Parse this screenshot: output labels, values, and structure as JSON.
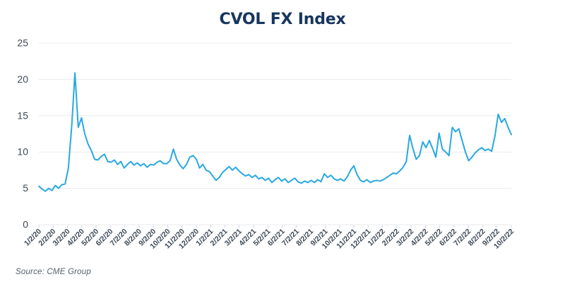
{
  "header": {
    "title": "CVOL FX Index"
  },
  "footer": {
    "source": "Source: CME Group"
  },
  "style": {
    "background": "#ffffff",
    "title_color": "#17365f",
    "line_color": "#29a8e1",
    "axis_label_color": "#3e4956",
    "grid_color": "#e8eaed",
    "tick_color": "#c9ced6",
    "source_color": "#555f6b"
  },
  "chart_data": {
    "type": "line",
    "title": "CVOL FX Index",
    "xlabel": "",
    "ylabel": "",
    "ylim": [
      0,
      25
    ],
    "y_ticks": [
      0,
      5,
      10,
      15,
      20,
      25
    ],
    "grid": "horizontal",
    "legend": "none",
    "source": "Source: CME Group",
    "x_tick_labels": [
      "1/2/20",
      "2/2/20",
      "3/2/20",
      "4/2/20",
      "5/2/20",
      "6/2/20",
      "7/2/20",
      "8/2/20",
      "9/2/20",
      "10/2/20",
      "11/2/20",
      "12/2/20",
      "1/2/21",
      "2/2/21",
      "3/2/21",
      "4/2/21",
      "5/2/21",
      "6/2/21",
      "7/2/21",
      "8/2/21",
      "9/2/21",
      "10/2/21",
      "11/2/21",
      "12/2/21",
      "1/2/22",
      "2/2/22",
      "3/2/22",
      "4/2/22",
      "5/2/22",
      "6/2/22",
      "7/2/22",
      "8/2/22",
      "9/2/22",
      "10/2/22"
    ],
    "series": [
      {
        "name": "CVOL FX Index",
        "color": "#29a8e1",
        "sampling": "weekly from 1/2/20 to 10/2/22",
        "values": [
          5.3,
          4.9,
          4.6,
          5.0,
          4.7,
          5.4,
          5.0,
          5.5,
          5.6,
          7.8,
          13.5,
          20.9,
          13.4,
          14.7,
          12.5,
          11.1,
          10.2,
          9.0,
          8.9,
          9.4,
          9.7,
          8.7,
          8.6,
          8.9,
          8.3,
          8.7,
          7.8,
          8.3,
          8.7,
          8.2,
          8.5,
          8.1,
          8.4,
          7.9,
          8.3,
          8.2,
          8.6,
          8.8,
          8.4,
          8.4,
          8.8,
          10.4,
          9.0,
          8.2,
          7.7,
          8.3,
          9.3,
          9.5,
          9.0,
          7.8,
          8.3,
          7.5,
          7.3,
          6.7,
          6.1,
          6.5,
          7.2,
          7.6,
          8.0,
          7.5,
          7.9,
          7.4,
          7.0,
          6.7,
          6.9,
          6.5,
          6.8,
          6.3,
          6.5,
          6.1,
          6.4,
          5.8,
          6.2,
          6.5,
          6.0,
          6.3,
          5.8,
          6.1,
          6.4,
          5.9,
          5.7,
          6.0,
          5.8,
          6.1,
          5.8,
          6.2,
          5.9,
          7.0,
          6.5,
          6.8,
          6.3,
          6.1,
          6.3,
          6.0,
          6.6,
          7.5,
          8.1,
          6.9,
          6.1,
          5.9,
          6.2,
          5.8,
          6.0,
          6.1,
          6.0,
          6.2,
          6.5,
          6.8,
          7.1,
          7.0,
          7.4,
          7.9,
          8.7,
          12.3,
          10.5,
          9.0,
          9.5,
          11.4,
          10.6,
          11.6,
          10.5,
          9.3,
          12.6,
          10.4,
          10.0,
          9.5,
          13.4,
          12.8,
          13.2,
          11.6,
          10.0,
          8.8,
          9.3,
          9.9,
          10.3,
          10.6,
          10.2,
          10.4,
          10.1,
          12.2,
          15.2,
          14.1,
          14.6,
          13.4,
          12.4
        ]
      }
    ]
  }
}
